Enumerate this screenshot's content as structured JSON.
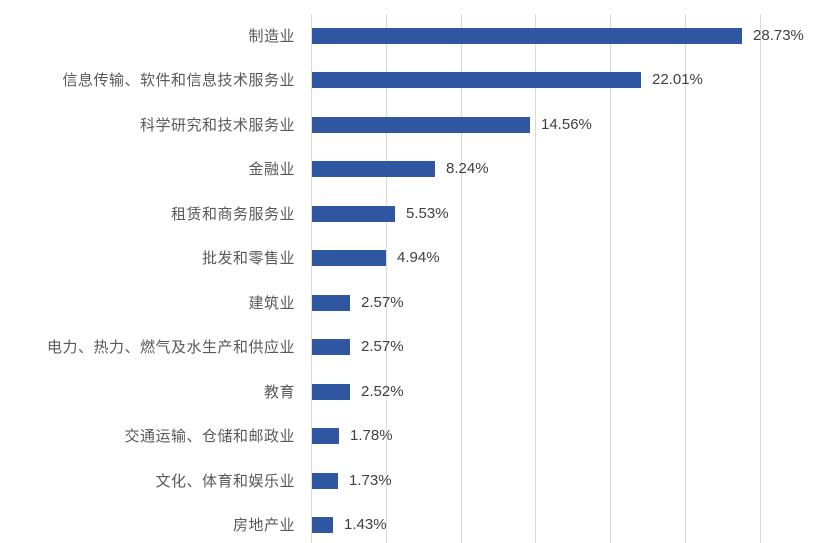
{
  "chart_data": {
    "type": "bar",
    "orientation": "horizontal",
    "title": "",
    "xlabel": "",
    "ylabel": "",
    "xlim": [
      0,
      30
    ],
    "grid": true,
    "gridline_step": 5,
    "legend": null,
    "categories": [
      "制造业",
      "信息传输、软件和信息技术服务业",
      "科学研究和技术服务业",
      "金融业",
      "租赁和商务服务业",
      "批发和零售业",
      "建筑业",
      "电力、热力、燃气及水生产和供应业",
      "教育",
      "交通运输、仓储和邮政业",
      "文化、体育和娱乐业",
      "房地产业"
    ],
    "values": [
      28.73,
      22.01,
      14.56,
      8.24,
      5.53,
      4.94,
      2.57,
      2.57,
      2.52,
      1.78,
      1.73,
      1.43
    ],
    "value_labels": [
      "28.73%",
      "22.01%",
      "14.56%",
      "8.24%",
      "5.53%",
      "4.94%",
      "2.57%",
      "2.57%",
      "2.52%",
      "1.78%",
      "1.73%",
      "1.43%"
    ],
    "colors": {
      "bar": "#2f56a0",
      "gridline": "#d9d9d9",
      "category_text": "#595959",
      "value_text": "#404040"
    }
  }
}
